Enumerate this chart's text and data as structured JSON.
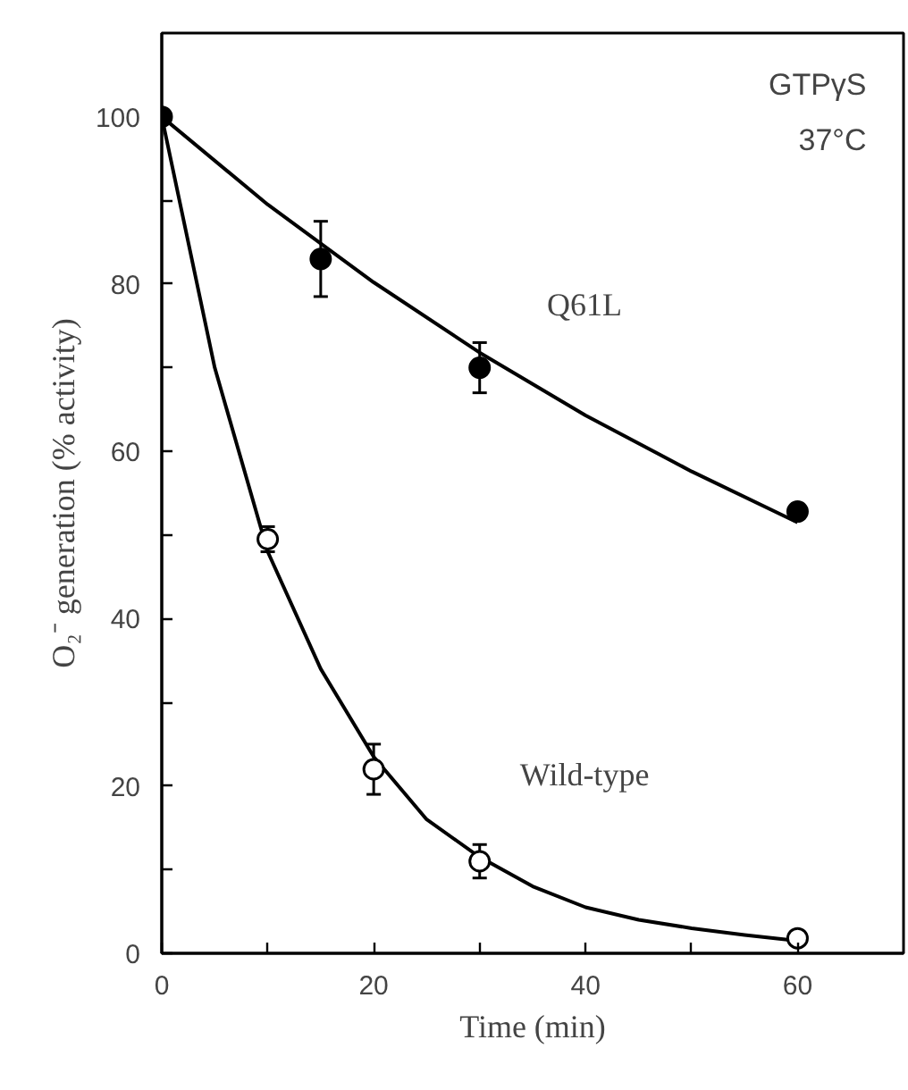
{
  "chart_data": {
    "type": "scatter",
    "xlabel": "Time (min)",
    "ylabel": "O₂⁻ generation (% activity)",
    "xlim": [
      0,
      70
    ],
    "ylim": [
      0,
      110
    ],
    "xticks": [
      0,
      {
        "value": 10,
        "label": null
      },
      20,
      {
        "value": 30,
        "label": null
      },
      40,
      {
        "value": 50,
        "label": null
      },
      60
    ],
    "yticks": [
      0,
      {
        "value": 10,
        "label": null
      },
      20,
      {
        "value": 30,
        "label": null
      },
      40,
      {
        "value": 50,
        "label": null
      },
      60,
      {
        "value": 70,
        "label": null
      },
      80,
      {
        "value": 90,
        "label": null
      },
      100
    ],
    "grid": false,
    "marker": "circle",
    "series": [
      {
        "type": "line",
        "color": "#000000",
        "line_style": "solid",
        "marker": "none",
        "x": [
          0,
          10,
          20,
          30,
          40,
          50,
          60
        ],
        "values": [
          100,
          89.5,
          80.2,
          71.8,
          64.3,
          57.6,
          51.5
        ]
      },
      {
        "type": "line",
        "color": "#000000",
        "line_style": "solid",
        "marker": "none",
        "x": [
          0,
          5,
          10,
          15,
          20,
          25,
          30,
          35,
          40,
          45,
          50,
          55,
          60
        ],
        "values": [
          100,
          70,
          48,
          34,
          23.5,
          16,
          11.5,
          8,
          5.5,
          4,
          3,
          2.2,
          1.5
        ]
      },
      {
        "color": "#000000",
        "x": [
          0,
          15,
          30,
          60
        ],
        "values": [
          100,
          83,
          70,
          52.8
        ],
        "errors": [
          null,
          4.5,
          3,
          null
        ]
      },
      {
        "color": "#ffffff",
        "x": [
          10,
          20,
          30,
          60
        ],
        "values": [
          49.5,
          22,
          11,
          1.8
        ],
        "errors": [
          1.5,
          3,
          2,
          null
        ]
      }
    ],
    "annotations": [
      "GTPγS",
      "37°C",
      "Q61L",
      "Wild-type"
    ]
  }
}
